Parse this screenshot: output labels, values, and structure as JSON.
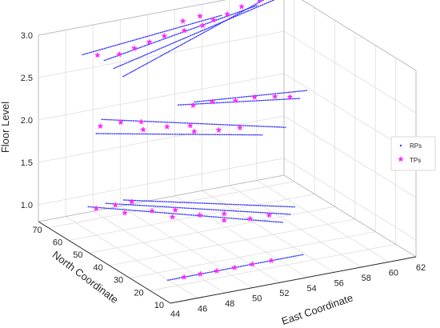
{
  "chart_data": {
    "type": "scatter",
    "title": "",
    "xlabel": "East Coordinate",
    "ylabel": "North Coordinate",
    "zlabel": "Floor Level",
    "xlim": [
      44,
      62
    ],
    "ylim": [
      10,
      75
    ],
    "zlim": [
      0.8,
      3.0
    ],
    "xticks": [
      44,
      46,
      48,
      50,
      52,
      54,
      56,
      58,
      60,
      62
    ],
    "yticks": [
      10,
      20,
      30,
      40,
      50,
      60,
      70
    ],
    "zticks": [
      1.0,
      1.5,
      2.0,
      2.5,
      3.0
    ],
    "grid": true,
    "legend_position": "right",
    "colors": {
      "RPs": "#3a3aff",
      "TPs": "#ff2bff"
    },
    "series": [
      {
        "name": "RPs",
        "segments": [
          {
            "floor": 1,
            "from": [
              44.4,
              14
            ],
            "to": [
              54.4,
              14
            ]
          },
          {
            "floor": 1,
            "from": [
              46.6,
              68
            ],
            "to": [
              56.1,
              36
            ]
          },
          {
            "floor": 1,
            "from": [
              47.9,
              68
            ],
            "to": [
              57.3,
              40
            ]
          },
          {
            "floor": 1,
            "from": [
              49.2,
              68
            ],
            "to": [
              58.2,
              44
            ]
          },
          {
            "floor": 2,
            "from": [
              46.0,
              60
            ],
            "to": [
              55.2,
              40
            ]
          },
          {
            "floor": 2,
            "from": [
              47.6,
              68
            ],
            "to": [
              57.2,
              42
            ]
          },
          {
            "floor": 2,
            "from": [
              53.2,
              68
            ],
            "to": [
              60.6,
              58
            ]
          },
          {
            "floor": 2,
            "from": [
              54.4,
              68
            ],
            "to": [
              61.8,
              62
            ]
          },
          {
            "floor": 3,
            "from": [
              44.7,
              58
            ],
            "to": [
              56.1,
              66
            ]
          },
          {
            "floor": 3,
            "from": [
              45.4,
              52
            ],
            "to": [
              59.0,
              68
            ]
          },
          {
            "floor": 3,
            "from": [
              45.2,
              46
            ],
            "to": [
              61.5,
              71
            ]
          },
          {
            "floor": 3,
            "from": [
              45.0,
              40
            ],
            "to": [
              62.0,
              75
            ]
          }
        ]
      },
      {
        "name": "TPs",
        "points": [
          {
            "x": 45.6,
            "y": 14,
            "z": 1
          },
          {
            "x": 46.8,
            "y": 14,
            "z": 1
          },
          {
            "x": 48.0,
            "y": 14,
            "z": 1
          },
          {
            "x": 49.3,
            "y": 14,
            "z": 1
          },
          {
            "x": 50.6,
            "y": 14,
            "z": 1
          },
          {
            "x": 52.0,
            "y": 14,
            "z": 1
          },
          {
            "x": 46.9,
            "y": 66,
            "z": 1
          },
          {
            "x": 48.3,
            "y": 66,
            "z": 1
          },
          {
            "x": 49.5,
            "y": 66,
            "z": 1
          },
          {
            "x": 48.1,
            "y": 60,
            "z": 1
          },
          {
            "x": 49.8,
            "y": 58,
            "z": 1
          },
          {
            "x": 51.2,
            "y": 56,
            "z": 1
          },
          {
            "x": 50.4,
            "y": 52,
            "z": 1
          },
          {
            "x": 52.1,
            "y": 50,
            "z": 1
          },
          {
            "x": 53.6,
            "y": 48,
            "z": 1
          },
          {
            "x": 53.0,
            "y": 44,
            "z": 1
          },
          {
            "x": 54.6,
            "y": 42,
            "z": 1
          },
          {
            "x": 56.0,
            "y": 42,
            "z": 1
          },
          {
            "x": 46.9,
            "y": 64,
            "z": 2
          },
          {
            "x": 48.4,
            "y": 64,
            "z": 2
          },
          {
            "x": 49.6,
            "y": 62,
            "z": 2
          },
          {
            "x": 49.0,
            "y": 57,
            "z": 2
          },
          {
            "x": 50.6,
            "y": 56,
            "z": 2
          },
          {
            "x": 52.0,
            "y": 54,
            "z": 2
          },
          {
            "x": 51.7,
            "y": 50,
            "z": 2
          },
          {
            "x": 53.2,
            "y": 48,
            "z": 2
          },
          {
            "x": 54.6,
            "y": 47,
            "z": 2
          },
          {
            "x": 54.0,
            "y": 66,
            "z": 2
          },
          {
            "x": 55.4,
            "y": 66,
            "z": 2
          },
          {
            "x": 56.8,
            "y": 64,
            "z": 2
          },
          {
            "x": 58.2,
            "y": 64,
            "z": 2
          },
          {
            "x": 59.4,
            "y": 62,
            "z": 2
          },
          {
            "x": 60.2,
            "y": 60,
            "z": 2
          },
          {
            "x": 45.5,
            "y": 56,
            "z": 3
          },
          {
            "x": 46.8,
            "y": 54,
            "z": 3
          },
          {
            "x": 48.2,
            "y": 56,
            "z": 3
          },
          {
            "x": 49.6,
            "y": 58,
            "z": 3
          },
          {
            "x": 51.0,
            "y": 60,
            "z": 3
          },
          {
            "x": 52.6,
            "y": 61,
            "z": 3
          },
          {
            "x": 54.1,
            "y": 62,
            "z": 3
          },
          {
            "x": 55.2,
            "y": 64,
            "z": 3
          },
          {
            "x": 56.5,
            "y": 66,
            "z": 3
          },
          {
            "x": 58.0,
            "y": 69,
            "z": 3
          },
          {
            "x": 59.6,
            "y": 71,
            "z": 3
          },
          {
            "x": 61.0,
            "y": 74,
            "z": 3
          },
          {
            "x": 53.4,
            "y": 67,
            "z": 3
          },
          {
            "x": 54.8,
            "y": 68,
            "z": 3
          }
        ]
      }
    ]
  }
}
